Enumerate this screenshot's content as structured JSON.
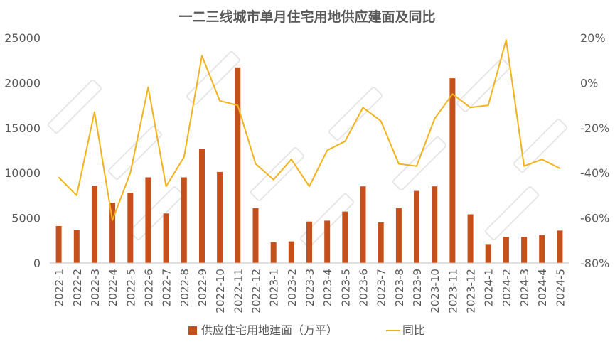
{
  "chart_data": {
    "type": "bar",
    "title": "一二三线城市单月住宅用地供应建面及同比",
    "categories": [
      "2022-1",
      "2022-2",
      "2022-3",
      "2022-4",
      "2022-5",
      "2022-6",
      "2022-7",
      "2022-8",
      "2022-9",
      "2022-10",
      "2022-11",
      "2022-12",
      "2023-1",
      "2023-2",
      "2023-3",
      "2023-4",
      "2023-5",
      "2023-6",
      "2023-7",
      "2023-8",
      "2023-9",
      "2023-10",
      "2023-11",
      "2023-12",
      "2024-1",
      "2024-2",
      "2024-3",
      "2024-4",
      "2024-5"
    ],
    "series": [
      {
        "name": "供应住宅用地建面（万平）",
        "type": "bar",
        "axis": "left",
        "color": "#c5501b",
        "values": [
          4100,
          3700,
          8600,
          6700,
          7800,
          9500,
          5500,
          9500,
          12700,
          10100,
          21700,
          6100,
          2300,
          2400,
          4600,
          4700,
          5700,
          8500,
          4500,
          6100,
          8000,
          8500,
          20500,
          5400,
          2100,
          2900,
          2900,
          3100,
          3600
        ]
      },
      {
        "name": "同比",
        "type": "line",
        "axis": "right",
        "color": "#f2b21c",
        "values": [
          -42,
          -50,
          -13,
          -61,
          -40,
          -2,
          -46,
          -33,
          12,
          -8,
          -10,
          -36,
          -43,
          -34,
          -46,
          -30,
          -26,
          -11,
          -17,
          -36,
          -37,
          -16,
          -5,
          -11,
          -10,
          19,
          -37,
          -34,
          -38
        ]
      }
    ],
    "y_left": {
      "ylim": [
        0,
        25000
      ],
      "ticks": [
        "0",
        "5000",
        "10000",
        "15000",
        "20000",
        "25000"
      ]
    },
    "y_right": {
      "ylim": [
        -80,
        20
      ],
      "ticks": [
        "-80%",
        "-60%",
        "-40%",
        "-20%",
        "0%",
        "20%"
      ]
    },
    "legend_position": "bottom",
    "grid": false
  }
}
